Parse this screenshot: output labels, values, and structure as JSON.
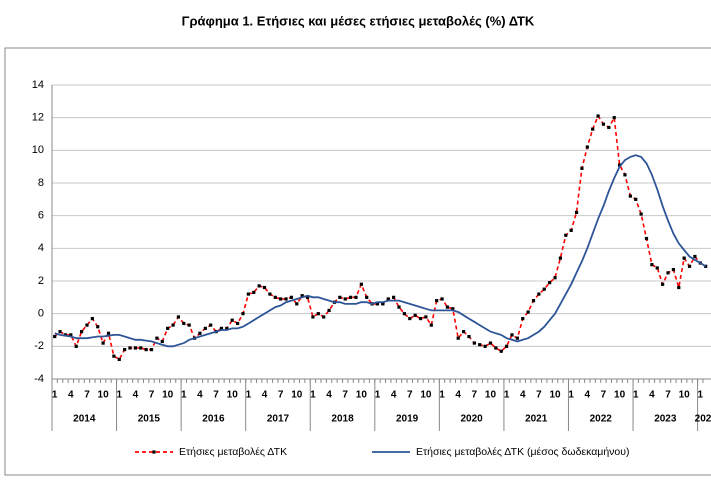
{
  "chart_data": {
    "type": "line",
    "title": "Γράφημα 1. Ετήσιες και μέσες ετήσιες μεταβολές (%) ΔΤΚ",
    "categories": [
      "1",
      null,
      null,
      "4",
      null,
      null,
      "7",
      null,
      null,
      "10",
      null,
      null,
      "1",
      null,
      null,
      "4",
      null,
      null,
      "7",
      null,
      null,
      "10",
      null,
      null,
      "1",
      null,
      null,
      "4",
      null,
      null,
      "7",
      null,
      null,
      "10",
      null,
      null,
      "1",
      null,
      null,
      "4",
      null,
      null,
      "7",
      null,
      null,
      "10",
      null,
      null,
      "1",
      null,
      null,
      "4",
      null,
      null,
      "7",
      null,
      null,
      "10",
      null,
      null,
      "1",
      null,
      null,
      "4",
      null,
      null,
      "7",
      null,
      null,
      "10",
      null,
      null,
      "1",
      null,
      null,
      "4",
      null,
      null,
      "7",
      null,
      null,
      "10",
      null,
      null,
      "1",
      null,
      null,
      "4",
      null,
      null,
      "7",
      null,
      null,
      "10",
      null,
      null,
      "1",
      null,
      null,
      "4",
      null,
      null,
      "7",
      null,
      null,
      "10",
      null,
      null,
      "1",
      null,
      null,
      "4",
      null,
      null,
      "7",
      null,
      null,
      "10",
      null,
      null,
      "1",
      null
    ],
    "years": [
      "2014",
      "2015",
      "2016",
      "2017",
      "2018",
      "2019",
      "2020",
      "2021",
      "2022",
      "2023",
      "202"
    ],
    "series": [
      {
        "name": "Ετήσιες μεταβολές ΔΤΚ",
        "color": "#ff0000",
        "marker_color": "#000000",
        "dashed": true,
        "values": [
          -1.4,
          -1.1,
          -1.3,
          -1.3,
          -2.0,
          -1.1,
          -0.7,
          -0.3,
          -0.8,
          -1.8,
          -1.2,
          -2.6,
          -2.8,
          -2.2,
          -2.1,
          -2.1,
          -2.1,
          -2.2,
          -2.2,
          -1.5,
          -1.7,
          -0.9,
          -0.7,
          -0.2,
          -0.6,
          -0.7,
          -1.5,
          -1.2,
          -0.9,
          -0.7,
          -1.1,
          -0.9,
          -0.9,
          -0.4,
          -0.6,
          0.0,
          1.2,
          1.3,
          1.7,
          1.6,
          1.2,
          1.0,
          0.9,
          0.9,
          1.0,
          0.6,
          1.1,
          1.0,
          -0.2,
          0.0,
          -0.2,
          0.2,
          0.7,
          1.0,
          0.9,
          1.0,
          1.0,
          1.8,
          1.0,
          0.6,
          0.6,
          0.6,
          0.9,
          1.0,
          0.4,
          0.0,
          -0.3,
          -0.1,
          -0.3,
          -0.2,
          -0.7,
          0.8,
          0.9,
          0.4,
          0.3,
          -1.5,
          -1.1,
          -1.4,
          -1.8,
          -1.9,
          -2.0,
          -1.8,
          -2.1,
          -2.3,
          -2.0,
          -1.3,
          -1.5,
          -0.3,
          0.1,
          0.8,
          1.2,
          1.5,
          1.9,
          2.2,
          3.4,
          4.8,
          5.1,
          6.2,
          8.9,
          10.2,
          11.3,
          12.1,
          11.6,
          11.4,
          12.0,
          9.1,
          8.5,
          7.2,
          7.0,
          6.1,
          4.6,
          3.0,
          2.8,
          1.8,
          2.5,
          2.7,
          1.6,
          3.4,
          2.9,
          3.5,
          3.1,
          2.9
        ]
      },
      {
        "name": "Ετήσιες μεταβολές ΔΤΚ (μέσος δωδεκαμήνου)",
        "color": "#2e5597",
        "dashed": false,
        "values": [
          -1.2,
          -1.3,
          -1.35,
          -1.4,
          -1.5,
          -1.5,
          -1.5,
          -1.45,
          -1.4,
          -1.4,
          -1.35,
          -1.3,
          -1.3,
          -1.4,
          -1.5,
          -1.6,
          -1.6,
          -1.65,
          -1.7,
          -1.8,
          -1.9,
          -2.0,
          -2.0,
          -1.9,
          -1.8,
          -1.6,
          -1.5,
          -1.4,
          -1.3,
          -1.2,
          -1.1,
          -1.0,
          -1.0,
          -0.9,
          -0.9,
          -0.8,
          -0.6,
          -0.4,
          -0.2,
          0.0,
          0.2,
          0.4,
          0.5,
          0.7,
          0.8,
          0.9,
          1.0,
          1.1,
          1.0,
          1.0,
          0.9,
          0.8,
          0.7,
          0.7,
          0.6,
          0.6,
          0.6,
          0.7,
          0.7,
          0.6,
          0.7,
          0.7,
          0.8,
          0.8,
          0.8,
          0.7,
          0.6,
          0.5,
          0.4,
          0.3,
          0.2,
          0.2,
          0.2,
          0.2,
          0.2,
          0.1,
          -0.1,
          -0.3,
          -0.5,
          -0.7,
          -0.9,
          -1.1,
          -1.2,
          -1.3,
          -1.5,
          -1.6,
          -1.7,
          -1.6,
          -1.5,
          -1.3,
          -1.1,
          -0.8,
          -0.4,
          0.0,
          0.6,
          1.2,
          1.8,
          2.5,
          3.2,
          4.0,
          4.9,
          5.8,
          6.6,
          7.5,
          8.3,
          9.0,
          9.4,
          9.6,
          9.7,
          9.6,
          9.2,
          8.5,
          7.6,
          6.6,
          5.7,
          4.9,
          4.3,
          3.9,
          3.5,
          3.3,
          3.1,
          2.9
        ]
      }
    ],
    "ylim": [
      -4,
      14
    ],
    "yticks": [
      -4,
      -2,
      0,
      2,
      4,
      6,
      8,
      10,
      12,
      14
    ],
    "grid": true
  }
}
